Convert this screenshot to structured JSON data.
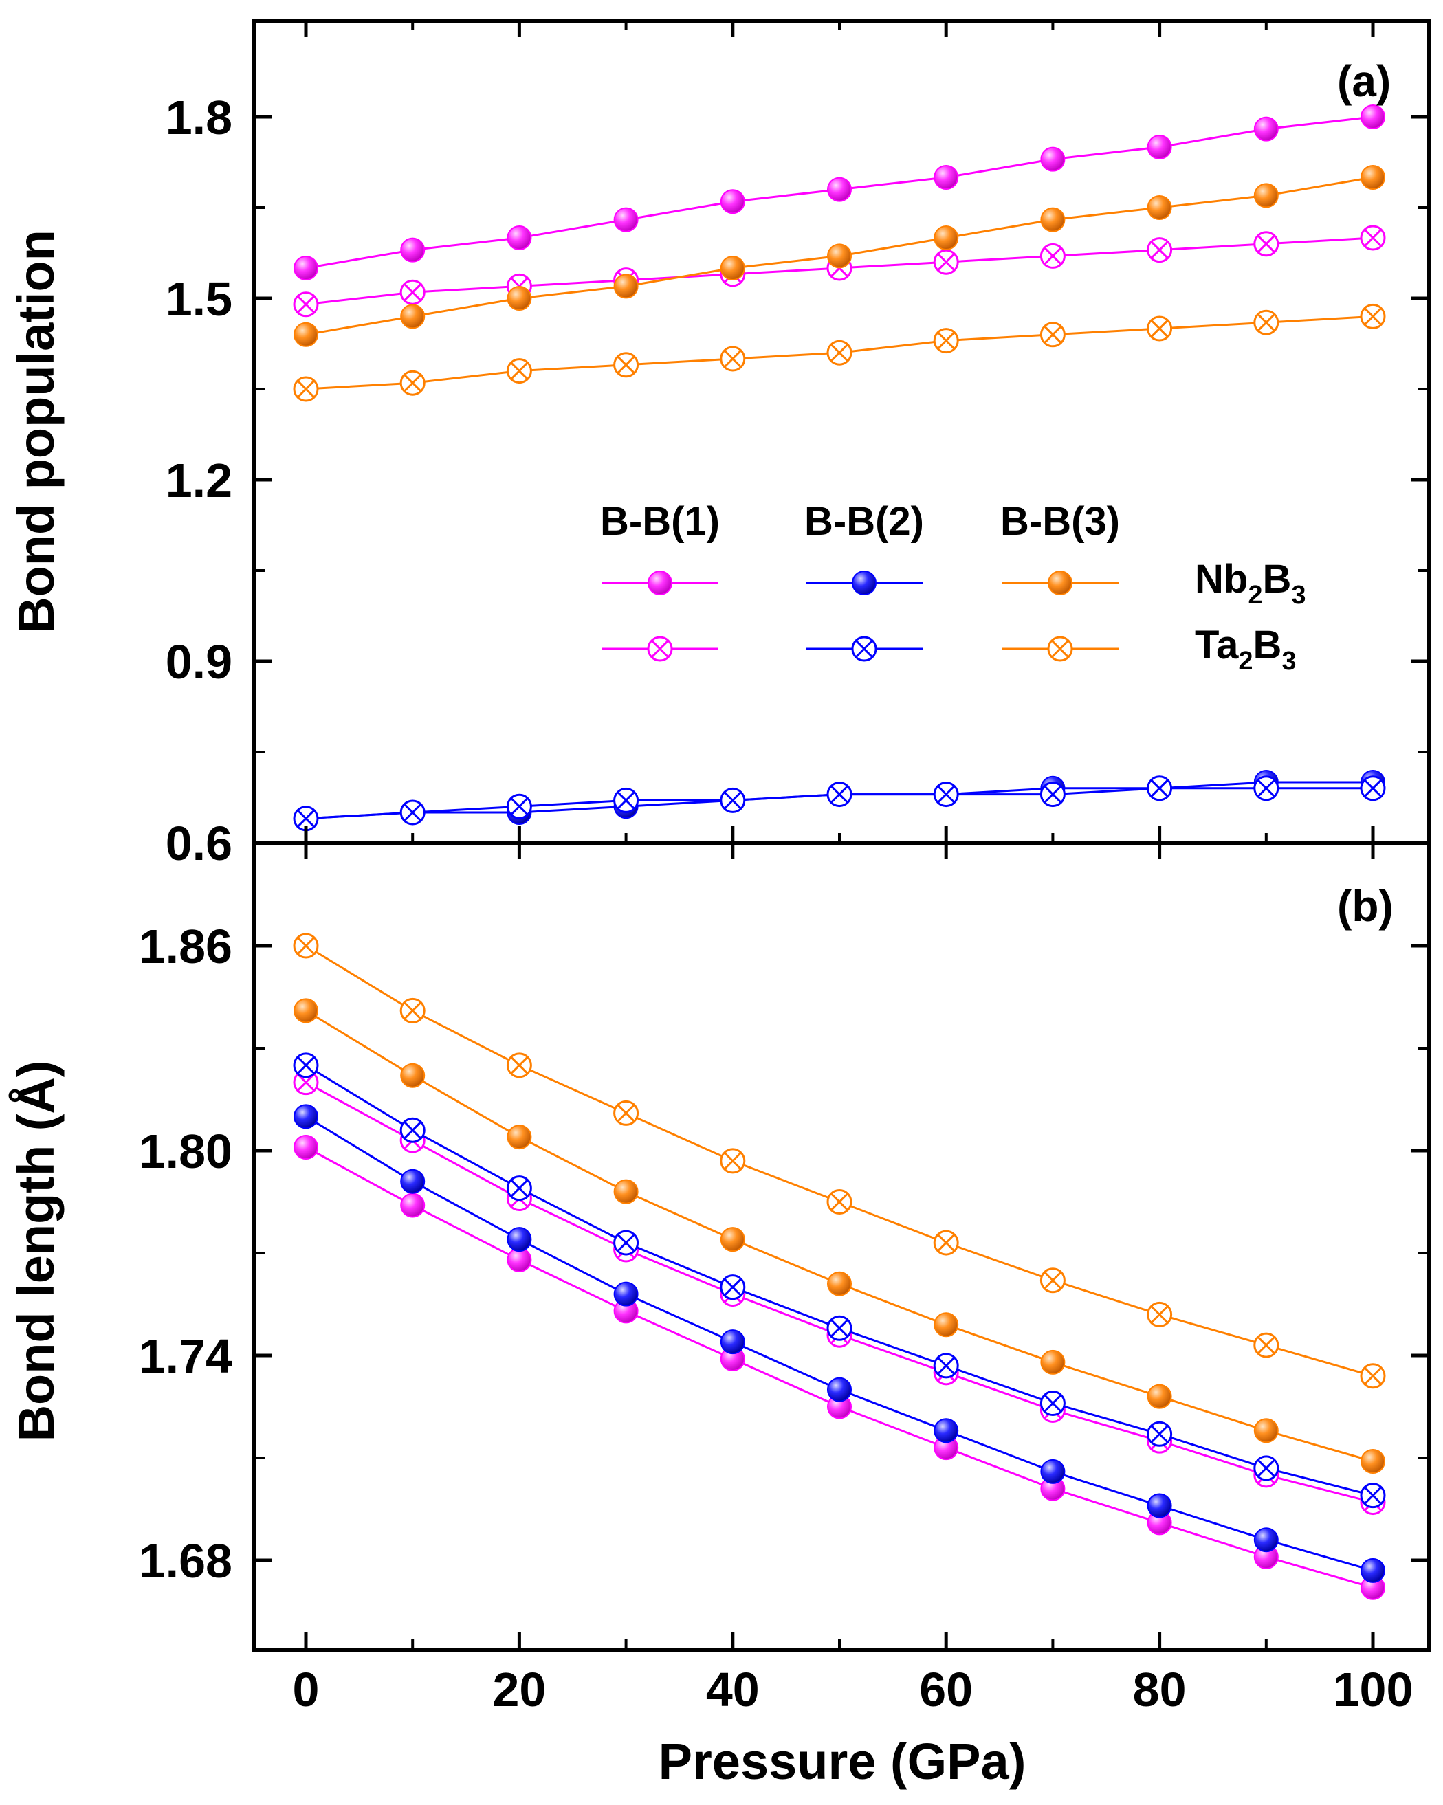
{
  "chart_data": [
    {
      "panel": "(a)",
      "type": "line",
      "ylabel": "Bond population",
      "xlabel": "",
      "ylim": [
        0.6,
        1.95
      ],
      "yticks": [
        "0.6",
        "0.9",
        "1.2",
        "1.5",
        "1.8"
      ],
      "x": [
        0,
        10,
        20,
        30,
        40,
        50,
        60,
        70,
        80,
        90,
        100
      ],
      "series": [
        {
          "name": "B-B(1) Nb2B3",
          "color": "#ff00ff",
          "marker": "filled",
          "values": [
            1.55,
            1.58,
            1.6,
            1.63,
            1.66,
            1.68,
            1.7,
            1.73,
            1.75,
            1.78,
            1.8
          ]
        },
        {
          "name": "B-B(1) Ta2B3",
          "color": "#ff00ff",
          "marker": "crossed",
          "values": [
            1.49,
            1.51,
            1.52,
            1.53,
            1.54,
            1.55,
            1.56,
            1.57,
            1.58,
            1.59,
            1.6
          ]
        },
        {
          "name": "B-B(2) Nb2B3",
          "color": "#0000ff",
          "marker": "filled",
          "values": [
            0.64,
            0.65,
            0.65,
            0.66,
            0.67,
            0.68,
            0.68,
            0.69,
            0.69,
            0.7,
            0.7
          ]
        },
        {
          "name": "B-B(2) Ta2B3",
          "color": "#0000ff",
          "marker": "crossed",
          "values": [
            0.64,
            0.65,
            0.66,
            0.67,
            0.67,
            0.68,
            0.68,
            0.68,
            0.69,
            0.69,
            0.69
          ]
        },
        {
          "name": "B-B(3) Nb2B3",
          "color": "#ff8000",
          "marker": "filled",
          "values": [
            1.44,
            1.47,
            1.5,
            1.52,
            1.55,
            1.57,
            1.6,
            1.63,
            1.65,
            1.67,
            1.7
          ]
        },
        {
          "name": "B-B(3) Ta2B3",
          "color": "#ff8000",
          "marker": "crossed",
          "values": [
            1.35,
            1.36,
            1.38,
            1.39,
            1.4,
            1.41,
            1.43,
            1.44,
            1.45,
            1.46,
            1.47
          ]
        }
      ]
    },
    {
      "panel": "(b)",
      "type": "line",
      "ylabel": "Bond length (Å)",
      "xlabel": "Pressure (GPa)",
      "xlim": [
        -5,
        104
      ],
      "ylim": [
        1.65,
        1.88
      ],
      "yticks": [
        "1.68",
        "1.74",
        "1.80",
        "1.86"
      ],
      "xticks": [
        "0",
        "20",
        "40",
        "60",
        "80",
        "100"
      ],
      "x": [
        0,
        10,
        20,
        30,
        40,
        50,
        60,
        70,
        80,
        90,
        100
      ],
      "series": [
        {
          "name": "B-B(1) Nb2B3",
          "color": "#ff00ff",
          "marker": "filled",
          "values": [
            1.801,
            1.784,
            1.768,
            1.753,
            1.739,
            1.725,
            1.713,
            1.701,
            1.691,
            1.681,
            1.672
          ]
        },
        {
          "name": "B-B(1) Ta2B3",
          "color": "#ff00ff",
          "marker": "crossed",
          "values": [
            1.82,
            1.803,
            1.786,
            1.771,
            1.758,
            1.746,
            1.735,
            1.724,
            1.715,
            1.705,
            1.697
          ]
        },
        {
          "name": "B-B(2) Nb2B3",
          "color": "#0000ff",
          "marker": "filled",
          "values": [
            1.81,
            1.791,
            1.774,
            1.758,
            1.744,
            1.73,
            1.718,
            1.706,
            1.696,
            1.686,
            1.677
          ]
        },
        {
          "name": "B-B(2) Ta2B3",
          "color": "#0000ff",
          "marker": "crossed",
          "values": [
            1.825,
            1.806,
            1.789,
            1.773,
            1.76,
            1.748,
            1.737,
            1.726,
            1.717,
            1.707,
            1.699
          ]
        },
        {
          "name": "B-B(3) Nb2B3",
          "color": "#ff8000",
          "marker": "filled",
          "values": [
            1.841,
            1.822,
            1.804,
            1.788,
            1.774,
            1.761,
            1.749,
            1.738,
            1.728,
            1.718,
            1.709
          ]
        },
        {
          "name": "B-B(3) Ta2B3",
          "color": "#ff8000",
          "marker": "crossed",
          "values": [
            1.86,
            1.841,
            1.825,
            1.811,
            1.797,
            1.785,
            1.773,
            1.762,
            1.752,
            1.743,
            1.734
          ]
        }
      ]
    }
  ],
  "legend": {
    "headers": [
      "B-B(1)",
      "B-B(2)",
      "B-B(3)"
    ],
    "colors": [
      "#ff00ff",
      "#0000ff",
      "#ff8000"
    ],
    "rows": [
      {
        "base": "Nb",
        "sub1": "2",
        "mid": "B",
        "sub2": "3",
        "marker": "filled"
      },
      {
        "base": "Ta",
        "sub1": "2",
        "mid": "B",
        "sub2": "3",
        "marker": "crossed"
      }
    ]
  }
}
